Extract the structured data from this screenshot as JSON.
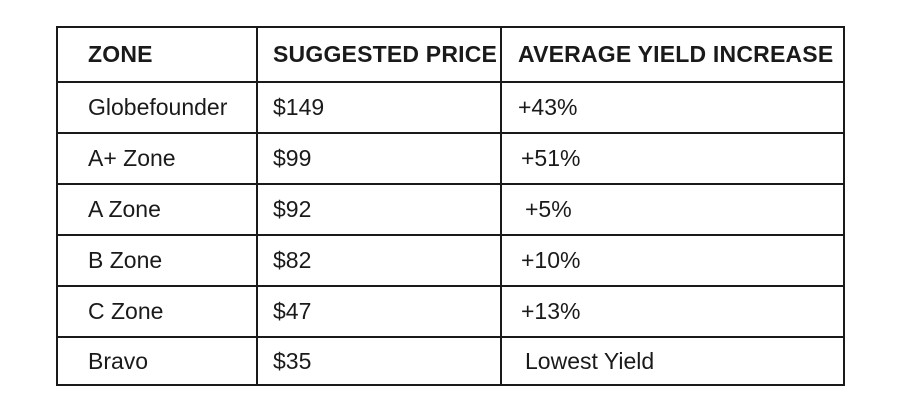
{
  "table": {
    "headers": {
      "zone": "ZONE",
      "price": "SUGGESTED PRICE",
      "yield": "AVERAGE YIELD INCREASE"
    },
    "rows": [
      {
        "zone": "Globefounder",
        "price": "$149",
        "yield": "+43%"
      },
      {
        "zone": "A+ Zone",
        "price": "$99",
        "yield": "+51%"
      },
      {
        "zone": "A Zone",
        "price": "$92",
        "yield": "+5%"
      },
      {
        "zone": "B Zone",
        "price": "$82",
        "yield": "+10%"
      },
      {
        "zone": "C Zone",
        "price": "$47",
        "yield": "+13%"
      },
      {
        "zone": "Bravo",
        "price": "$35",
        "yield": "Lowest Yield"
      }
    ]
  }
}
